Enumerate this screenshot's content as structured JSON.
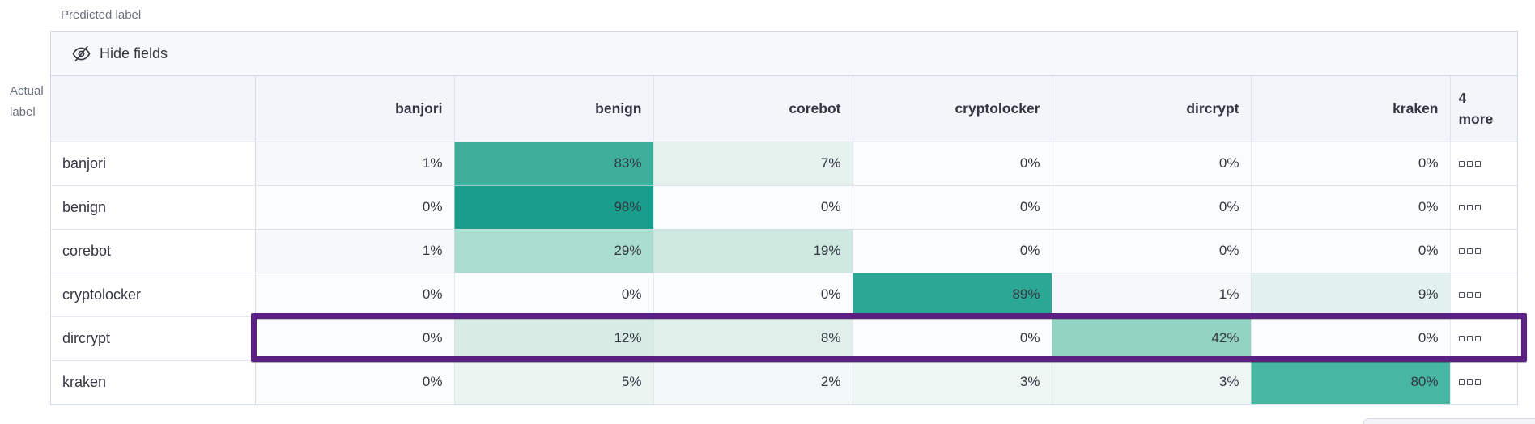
{
  "labels": {
    "predicted": "Predicted label",
    "actual_line1": "Actual",
    "actual_line2": "label"
  },
  "toolbar": {
    "hide_fields": "Hide fields"
  },
  "icons": {
    "toolbar_icon": "eye-slash-icon",
    "row_actions_icon": "boxes-icon"
  },
  "colors": {
    "highlight_border": "#5a2182",
    "panel_border": "#d3dae6",
    "header_bg": "#f3f5fb",
    "toolbar_bg": "#f7f8fc",
    "text": "#343741",
    "muted_text": "#69707d",
    "strong_cell": "#189e8b"
  },
  "chart_data": {
    "type": "heatmap",
    "x_axis_label": "Predicted label",
    "y_axis_label": "Actual label",
    "columns": [
      "banjori",
      "benign",
      "corebot",
      "cryptolocker",
      "dircrypt",
      "kraken"
    ],
    "hidden_columns_header": {
      "count": "4",
      "label": "more"
    },
    "rows": [
      {
        "label": "banjori",
        "values": [
          "1%",
          "83%",
          "7%",
          "0%",
          "0%",
          "0%"
        ],
        "cell_colors": [
          "#f5f9fa",
          "#3eae9b",
          "#e4f1ed",
          "#fafcfd",
          "#fafcfd",
          "#fafcfd"
        ],
        "highlighted": false
      },
      {
        "label": "benign",
        "values": [
          "0%",
          "98%",
          "0%",
          "0%",
          "0%",
          "0%"
        ],
        "cell_colors": [
          "#fafcfd",
          "#189e8b",
          "#fafcfd",
          "#fafcfd",
          "#fafcfd",
          "#fafcfd"
        ],
        "highlighted": false
      },
      {
        "label": "corebot",
        "values": [
          "1%",
          "29%",
          "19%",
          "0%",
          "0%",
          "0%"
        ],
        "cell_colors": [
          "#f5f9fa",
          "#abdcd0",
          "#cfe9e1",
          "#fafcfd",
          "#fafcfd",
          "#fafcfd"
        ],
        "highlighted": false
      },
      {
        "label": "cryptolocker",
        "values": [
          "0%",
          "0%",
          "0%",
          "89%",
          "1%",
          "9%"
        ],
        "cell_colors": [
          "#fafcfd",
          "#fafcfd",
          "#fafcfd",
          "#2da795",
          "#f5f9fa",
          "#e2f1ed"
        ],
        "highlighted": false
      },
      {
        "label": "dircrypt",
        "values": [
          "0%",
          "12%",
          "8%",
          "0%",
          "42%",
          "0%"
        ],
        "cell_colors": [
          "#fafcfd",
          "#d8ece5",
          "#e0efe9",
          "#fafcfd",
          "#92d3c2",
          "#fafcfd"
        ],
        "highlighted": true
      },
      {
        "label": "kraken",
        "values": [
          "0%",
          "5%",
          "2%",
          "3%",
          "3%",
          "80%"
        ],
        "cell_colors": [
          "#fafcfd",
          "#e9f4f1",
          "#f2f8f7",
          "#eef6f4",
          "#eef6f4",
          "#47b7a3"
        ],
        "highlighted": false
      }
    ]
  }
}
